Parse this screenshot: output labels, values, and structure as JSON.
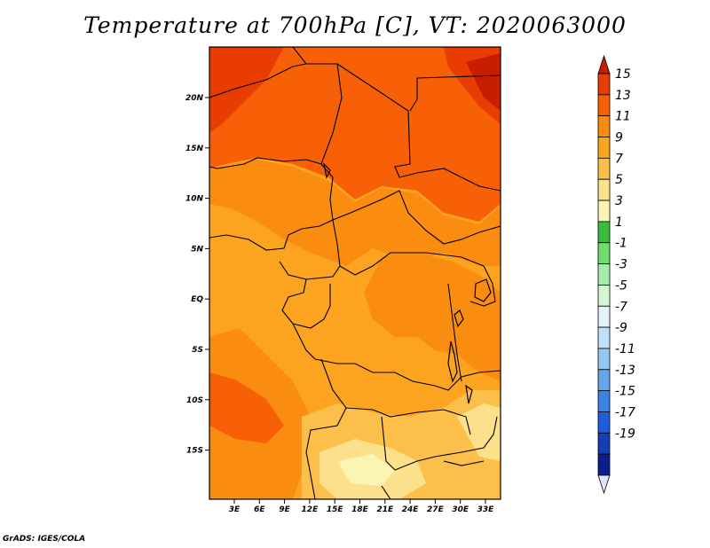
{
  "title": "Temperature at 700hPa [C], VT: 2020063000",
  "credit": "GrADS: IGES/COLA",
  "map": {
    "lat_ticks": [
      "20N",
      "15N",
      "10N",
      "5N",
      "EQ",
      "5S",
      "10S",
      "15S"
    ],
    "lon_ticks": [
      "3E",
      "6E",
      "9E",
      "12E",
      "15E",
      "18E",
      "21E",
      "24E",
      "27E",
      "30E",
      "33E"
    ]
  },
  "colorbar": {
    "labels": [
      "15",
      "13",
      "11",
      "9",
      "7",
      "5",
      "3",
      "1",
      "-1",
      "-3",
      "-5",
      "-7",
      "-9",
      "-11",
      "-13",
      "-15",
      "-17",
      "-19"
    ],
    "colors": [
      "#c81e00",
      "#e83c00",
      "#f86008",
      "#fa8c10",
      "#fca420",
      "#fcc04a",
      "#fce08c",
      "#fcf4b4",
      "#3cbc3c",
      "#70dc6c",
      "#a8ecaa",
      "#d4f6d2",
      "#e4f2fc",
      "#c0e0fa",
      "#94c8f4",
      "#64a6ee",
      "#3c82e4",
      "#1e5edc",
      "#1440b4",
      "#0a1e8c",
      "#e4e4f8"
    ]
  }
}
